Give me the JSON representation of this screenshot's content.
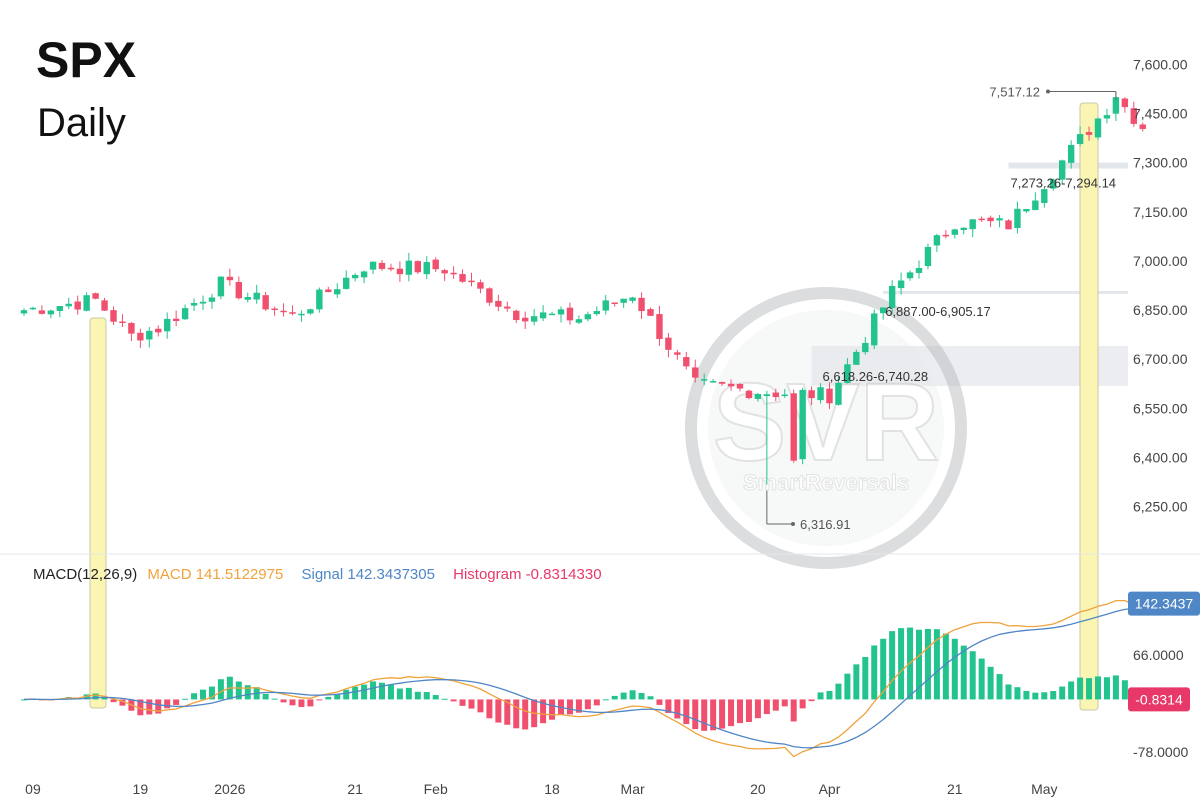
{
  "header": {
    "symbol": "SPX",
    "interval": "Daily"
  },
  "watermark": {
    "monogram": "SVR",
    "brand": "SmartReversals"
  },
  "colors": {
    "up": "#22c38e",
    "down": "#f0506e",
    "macd": "#f0a23c",
    "signal": "#4f86c6",
    "highlight": "#fbf5b4",
    "zone": "#e3e6ea"
  },
  "chart_data": [
    {
      "type": "candlestick",
      "ylim": [
        6160,
        7650
      ],
      "yticks": [
        "7,600.00",
        "7,450.00",
        "7,300.00",
        "7,150.00",
        "7,000.00",
        "6,850.00",
        "6,700.00",
        "6,550.00",
        "6,400.00",
        "6,250.00"
      ],
      "ytick_values": [
        7600,
        7450,
        7300,
        7150,
        7000,
        6850,
        6700,
        6550,
        6400,
        6250
      ],
      "xtick_labels": [
        "09",
        "19",
        "2026",
        "21",
        "Feb",
        "18",
        "Mar",
        "20",
        "Apr",
        "21",
        "May"
      ],
      "xtick_index": [
        1,
        13,
        23,
        37,
        46,
        59,
        68,
        82,
        90,
        104,
        114
      ],
      "anchors": {
        "first_close": 6850,
        "open_15": 6795,
        "low_30": 6830,
        "open_47": 6975,
        "close_62": 6825,
        "close_75": 6620,
        "open_83": 6600,
        "close_90": 6590,
        "close_97": 6905,
        "close_104": 7120,
        "close_114": 7240,
        "peak_close_122": 7500
      },
      "annotations": {
        "high": {
          "label": "7,517.12",
          "value": 7517.12
        },
        "low": {
          "label": "6,316.91",
          "value": 6316.91
        },
        "zones": [
          {
            "label": "7,273.26-7,294.14",
            "low": 7273.26,
            "high": 7294.14
          },
          {
            "label": "6,887.00-6,905.17",
            "low": 6887.0,
            "high": 6905.17
          },
          {
            "label": "6,618.26-6,740.28",
            "low": 6618.26,
            "high": 6740.28
          }
        ]
      }
    },
    {
      "type": "macd",
      "legend": {
        "name": "MACD(12,26,9)",
        "macd_label": "MACD 141.5122975",
        "signal_label": "Signal 142.3437305",
        "hist_label": "Histogram -0.8314330"
      },
      "ylim": [
        -90,
        170
      ],
      "yticks": [
        "66.0000",
        "-78.0000"
      ],
      "ytick_values": [
        66,
        -78
      ],
      "signal_badge": {
        "label": "142.3437",
        "value": 142.3437
      },
      "hist_badge": {
        "label": "-0.8314",
        "value": -0.8314
      }
    }
  ]
}
